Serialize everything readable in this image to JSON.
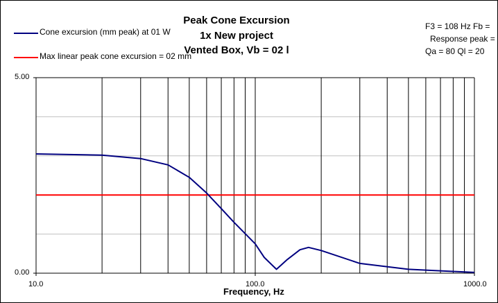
{
  "chart_data": {
    "type": "line",
    "title": [
      "Peak Cone Excursion",
      "1x New project",
      "Vented Box, Vb = 02 l"
    ],
    "xlabel": "Frequency, Hz",
    "ylabel": "",
    "xscale": "log",
    "xlim": [
      10,
      1000
    ],
    "ylim": [
      0,
      5
    ],
    "xticks": [
      "10.0",
      "100.0",
      "1000.0"
    ],
    "yticks": [
      "0.00",
      "5.00"
    ],
    "grid": true,
    "legend_position": "top-left",
    "series": [
      {
        "name": "Cone excursion (mm peak) at 01 W",
        "color": "#000080",
        "x": [
          10,
          20,
          30,
          40,
          50,
          60,
          70,
          80,
          100,
          110,
          125,
          140,
          160,
          175,
          200,
          300,
          500,
          700,
          1000
        ],
        "y": [
          3.05,
          3.02,
          2.93,
          2.77,
          2.45,
          2.05,
          1.65,
          1.3,
          0.75,
          0.4,
          0.1,
          0.35,
          0.6,
          0.66,
          0.58,
          0.25,
          0.1,
          0.06,
          0.02
        ]
      },
      {
        "name": "Max linear peak cone excursion = 02 mm",
        "color": "#ff0000",
        "x": [
          10,
          1000
        ],
        "y": [
          2,
          2
        ]
      }
    ]
  },
  "info": {
    "line1": "F3 = 108 Hz  Fb =",
    "line2": "Response peak =",
    "line3": "Qa = 80  Ql = 20"
  }
}
